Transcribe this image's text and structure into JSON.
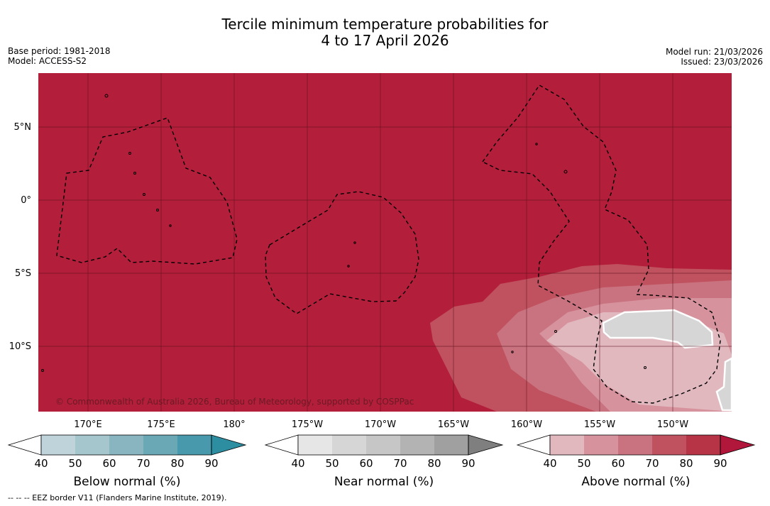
{
  "title_line1": "Tercile minimum temperature probabilities for",
  "title_line2": "4 to 17 April 2026",
  "base_period": "Base period: 1981-2018",
  "model": "Model: ACCESS-S2",
  "model_run": "Model run: 21/03/2026",
  "issued": "Issued: 23/03/2026",
  "copyright": "© Commonwealth of Australia 2026, Bureau of Meteorology, supported by COSPPac",
  "footnote": "-- -- -- EEZ border V11 (Flanders Marine Institute, 2019).",
  "map": {
    "lat_labels": [
      "5°N",
      "0°",
      "5°S",
      "10°S"
    ],
    "lon_labels": [
      "170°E",
      "175°E",
      "180°",
      "175°W",
      "170°W",
      "165°W",
      "160°W",
      "155°W",
      "150°W"
    ],
    "dominant_color": "#b31e3a"
  },
  "colorbars": [
    {
      "title": "Below normal (%)",
      "ticks": [
        "40",
        "50",
        "60",
        "70",
        "80",
        "90"
      ],
      "colors": [
        "#ffffff",
        "#bfd3da",
        "#a6c6cd",
        "#89b5c0",
        "#6aa8b6",
        "#4799ab",
        "#2e8ea1"
      ]
    },
    {
      "title": "Near normal (%)",
      "ticks": [
        "40",
        "50",
        "60",
        "70",
        "80",
        "90"
      ],
      "colors": [
        "#ffffff",
        "#e6e6e6",
        "#d6d6d6",
        "#c6c6c6",
        "#b3b3b3",
        "#a0a0a0",
        "#7f7f7f"
      ]
    },
    {
      "title": "Above normal (%)",
      "ticks": [
        "40",
        "50",
        "60",
        "70",
        "80",
        "90"
      ],
      "colors": [
        "#ffffff",
        "#e2b8bf",
        "#d6929d",
        "#ca7380",
        "#c0525f",
        "#b73447",
        "#b0173a"
      ]
    }
  ]
}
